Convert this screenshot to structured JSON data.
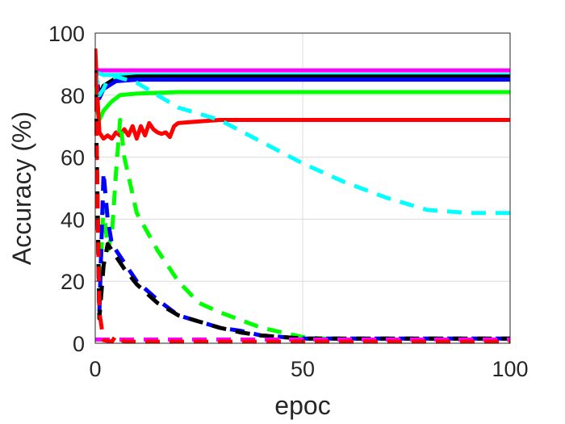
{
  "chart_data": {
    "type": "line",
    "title": "",
    "xlabel": "epoc",
    "ylabel": "Accuracy (%)",
    "xlim": [
      0,
      100
    ],
    "ylim": [
      0,
      100
    ],
    "xticks": [
      0,
      50,
      100
    ],
    "yticks": [
      0,
      20,
      40,
      60,
      80,
      100
    ],
    "grid": true,
    "legend": "none",
    "series": [
      {
        "color": "#ff00ff",
        "style": "solid",
        "x": [
          0,
          1,
          100
        ],
        "y": [
          88,
          88,
          88
        ]
      },
      {
        "color": "#00ffff",
        "style": "solid",
        "x": [
          0,
          1,
          2,
          5,
          10,
          20,
          50,
          100
        ],
        "y": [
          87,
          87,
          86.5,
          86.5,
          86.5,
          86.5,
          86.5,
          86.5
        ]
      },
      {
        "color": "#000000",
        "style": "solid",
        "x": [
          0,
          1,
          2,
          5,
          10,
          20,
          50,
          100
        ],
        "y": [
          88,
          80,
          83,
          85.5,
          86,
          86,
          86,
          86
        ]
      },
      {
        "color": "#0000ff",
        "style": "solid",
        "x": [
          0,
          1,
          2,
          5,
          10,
          20,
          50,
          100
        ],
        "y": [
          88,
          79,
          82,
          84.5,
          85,
          85,
          85,
          85
        ]
      },
      {
        "color": "#00ff00",
        "style": "solid",
        "x": [
          0,
          0.5,
          1,
          2,
          4,
          6,
          10,
          20,
          40,
          60,
          100
        ],
        "y": [
          87,
          75,
          72,
          75,
          78,
          80,
          80.5,
          81,
          81,
          81,
          81
        ]
      },
      {
        "color": "#ff0000",
        "style": "solid",
        "x": [
          0,
          0.5,
          1,
          2,
          3,
          4,
          5,
          6,
          7,
          8,
          9,
          10,
          11,
          12,
          13,
          14,
          15,
          16,
          17,
          18,
          19,
          20,
          25,
          30,
          40,
          100
        ],
        "y": [
          95,
          80,
          68,
          66,
          67,
          66,
          68,
          67,
          69,
          67,
          70,
          66,
          70,
          67,
          71,
          69,
          68,
          67.5,
          68,
          66.5,
          70,
          71,
          71.5,
          72,
          72,
          72
        ]
      },
      {
        "color": "#00ffff",
        "style": "dashed",
        "x": [
          0,
          1,
          2,
          3,
          5,
          10,
          15,
          20,
          30,
          40,
          50,
          60,
          70,
          80,
          90,
          100
        ],
        "y": [
          88,
          80,
          82,
          85,
          86,
          84,
          80,
          76,
          72,
          65,
          58,
          52,
          47,
          43,
          42,
          42
        ]
      },
      {
        "color": "#00ff00",
        "style": "dashed",
        "x": [
          0,
          1,
          2,
          3,
          4,
          5,
          6,
          7,
          10,
          15,
          20,
          25,
          30,
          40,
          50,
          60,
          100
        ],
        "y": [
          88,
          15,
          45,
          30,
          35,
          55,
          72,
          60,
          42,
          30,
          20,
          13,
          10,
          5,
          2,
          1,
          1
        ]
      },
      {
        "color": "#0000ff",
        "style": "dashed",
        "x": [
          0,
          1,
          2,
          3,
          4,
          5,
          7,
          10,
          15,
          20,
          25,
          30,
          35,
          40,
          50,
          100
        ],
        "y": [
          88,
          10,
          55,
          40,
          32,
          30,
          26,
          20,
          14,
          9,
          7,
          5,
          4,
          2.5,
          1.5,
          1.5
        ]
      },
      {
        "color": "#000000",
        "style": "dashed",
        "x": [
          0,
          1,
          2,
          3,
          4,
          5,
          7,
          10,
          15,
          20,
          25,
          30,
          35,
          40,
          50,
          100
        ],
        "y": [
          88,
          8,
          25,
          32,
          30,
          28,
          24,
          19,
          13,
          9,
          7,
          5,
          3.5,
          2.5,
          1.5,
          1.5
        ]
      },
      {
        "color": "#ff00ff",
        "style": "dashed",
        "x": [
          0,
          100
        ],
        "y": [
          1.2,
          1.2
        ]
      },
      {
        "color": "#ff0000",
        "style": "dashed",
        "x": [
          0,
          0.5,
          1,
          2,
          4,
          5,
          6,
          7,
          10,
          100
        ],
        "y": [
          95,
          50,
          10,
          1,
          0.5,
          2.5,
          1.5,
          0.5,
          0.5,
          0.5
        ]
      }
    ]
  }
}
